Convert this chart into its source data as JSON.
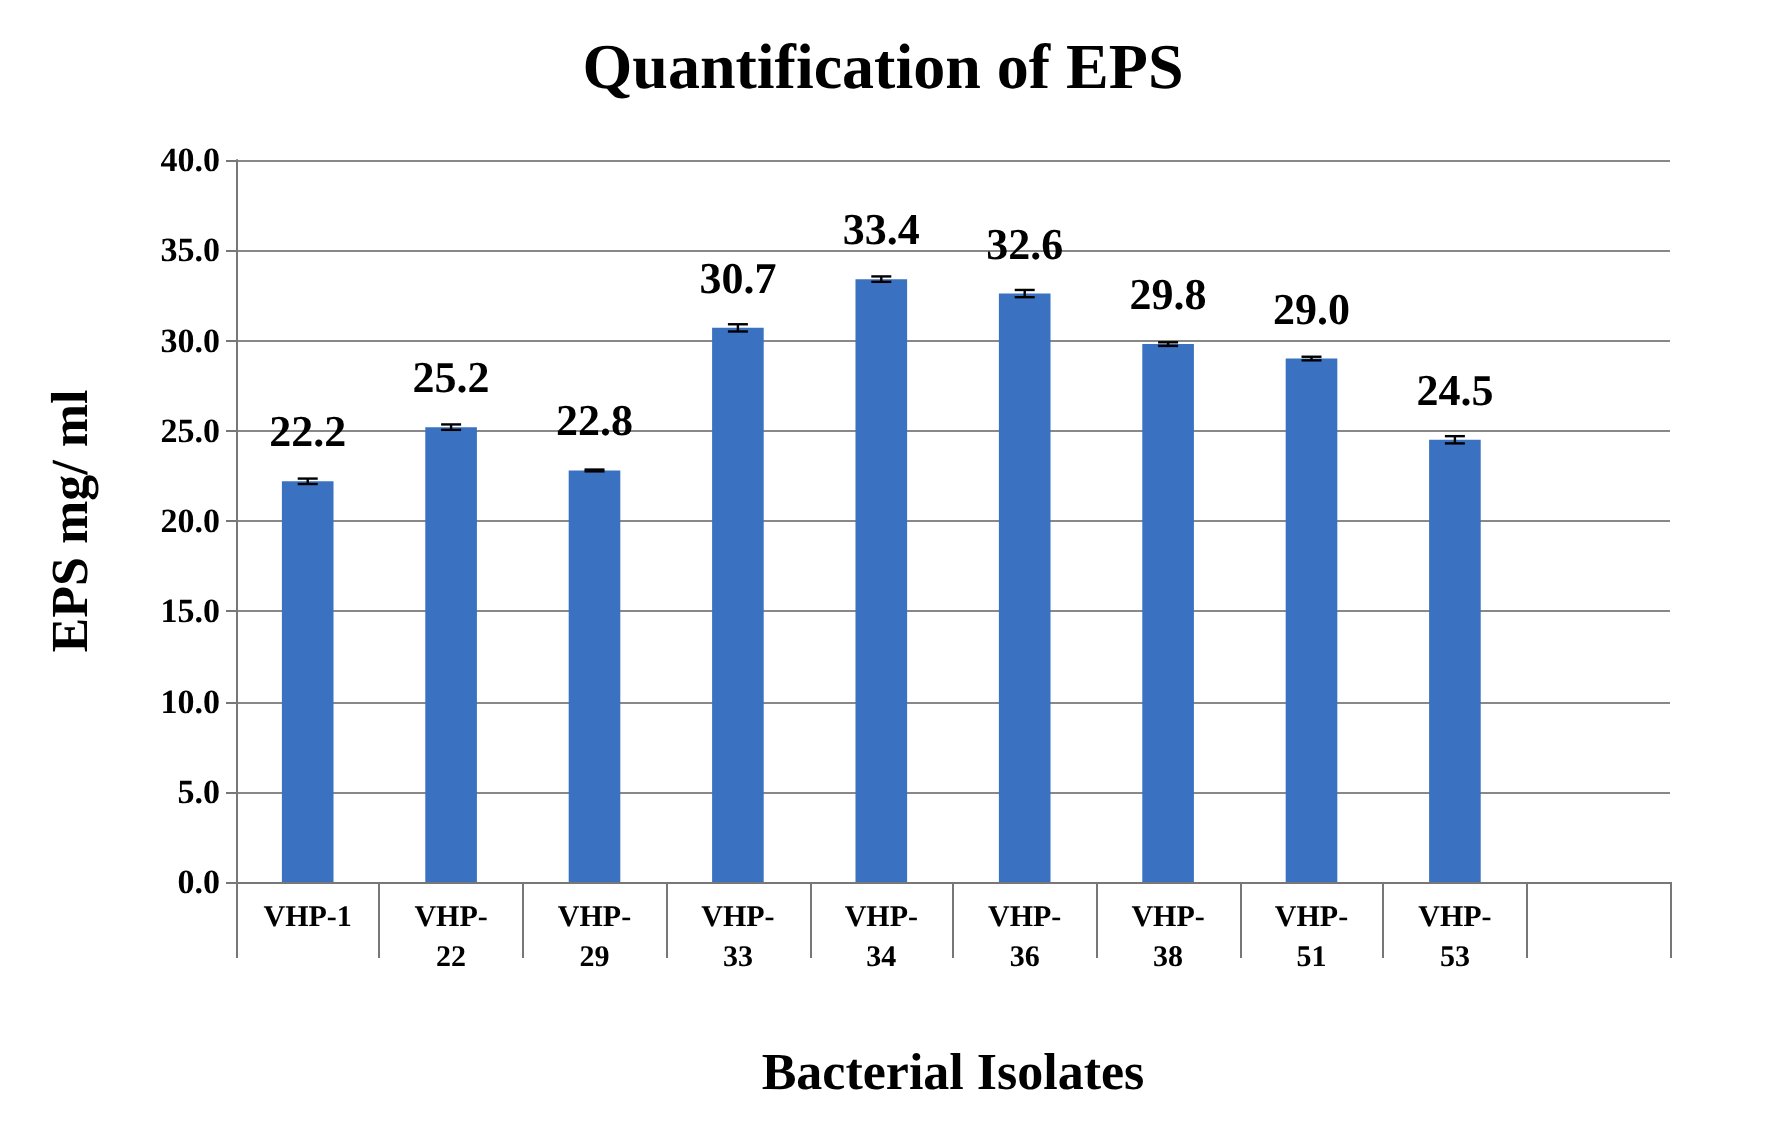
{
  "chart_data": {
    "type": "bar",
    "title": "Quantification of EPS",
    "xlabel": "Bacterial Isolates",
    "ylabel": "EPS mg/ ml",
    "categories": [
      "VHP-1",
      "VHP-22",
      "VHP-29",
      "VHP-33",
      "VHP-34",
      "VHP-36",
      "VHP-38",
      "VHP-51",
      "VHP-53",
      null
    ],
    "values": [
      22.2,
      25.2,
      22.8,
      30.7,
      33.4,
      32.6,
      29.8,
      29.0,
      24.5,
      null
    ],
    "value_labels": [
      "22.2",
      "25.2",
      "22.8",
      "30.7",
      "33.4",
      "32.6",
      "29.8",
      "29.0",
      "24.5",
      null
    ],
    "errors": [
      0.15,
      0.15,
      0.05,
      0.2,
      0.15,
      0.2,
      0.1,
      0.1,
      0.2,
      null
    ],
    "color": "#3a72c1",
    "ylim": [
      0,
      40
    ],
    "yticks": [
      {
        "value": 0,
        "label": "0.0"
      },
      {
        "value": 5,
        "label": "5.0"
      },
      {
        "value": 10,
        "label": "10.0"
      },
      {
        "value": 15,
        "label": "15.0"
      },
      {
        "value": 20,
        "label": "20.0"
      },
      {
        "value": 25,
        "label": "25.0"
      },
      {
        "value": 30,
        "label": "30.0"
      },
      {
        "value": 35,
        "label": "35.0"
      },
      {
        "value": 40,
        "label": "40.0"
      }
    ],
    "grid": "y"
  }
}
